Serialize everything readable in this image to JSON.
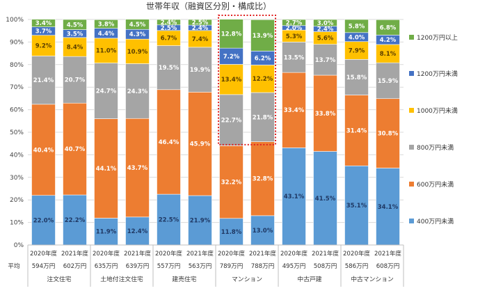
{
  "chart_data": {
    "type": "bar",
    "stacked": true,
    "title": "世帯年収（融資区分別・構成比）",
    "ylim": [
      0,
      100
    ],
    "yticks": [
      "0%",
      "10%",
      "20%",
      "30%",
      "40%",
      "50%",
      "60%",
      "70%",
      "80%",
      "90%",
      "100%"
    ],
    "categories": [
      "2020年度",
      "2021年度",
      "2020年度",
      "2021年度",
      "2020年度",
      "2021年度",
      "2020年度",
      "2021年度",
      "2020年度",
      "2021年度",
      "2020年度",
      "2021年度"
    ],
    "averages_label": "平均",
    "averages": [
      "594万円",
      "602万円",
      "635万円",
      "639万円",
      "557万円",
      "563万円",
      "789万円",
      "788万円",
      "495万円",
      "508万円",
      "586万円",
      "608万円"
    ],
    "groups": [
      "注文住宅",
      "土地付注文住宅",
      "建売住宅",
      "マンション",
      "中古戸建",
      "中古マンション"
    ],
    "highlight_group": "マンション",
    "legend_position": "right",
    "series": [
      {
        "name": "400万円未満",
        "color": "#5b9bd5",
        "values": [
          22.0,
          22.2,
          11.9,
          12.4,
          22.5,
          21.9,
          11.8,
          13.0,
          43.1,
          41.5,
          35.1,
          34.1
        ]
      },
      {
        "name": "600万円未満",
        "color": "#ed7d31",
        "values": [
          40.4,
          40.7,
          44.1,
          43.7,
          46.4,
          45.9,
          32.2,
          32.8,
          33.4,
          33.8,
          31.4,
          30.8
        ]
      },
      {
        "name": "800万円未満",
        "color": "#a5a5a5",
        "values": [
          21.4,
          20.7,
          24.7,
          24.3,
          19.5,
          19.9,
          22.7,
          21.8,
          13.5,
          13.7,
          15.8,
          15.9
        ]
      },
      {
        "name": "1000万円未満",
        "color": "#ffc000",
        "values": [
          9.2,
          8.4,
          11.0,
          10.9,
          6.7,
          7.4,
          13.4,
          12.2,
          5.3,
          5.6,
          7.9,
          8.1
        ]
      },
      {
        "name": "1200万円未満",
        "color": "#4472c4",
        "values": [
          3.7,
          3.5,
          4.4,
          4.3,
          2.5,
          2.4,
          7.2,
          6.2,
          2.0,
          2.4,
          4.0,
          4.2
        ]
      },
      {
        "name": "1200万円以上",
        "color": "#70ad47",
        "values": [
          3.4,
          4.5,
          3.8,
          4.5,
          2.4,
          2.5,
          12.8,
          13.9,
          2.7,
          3.0,
          5.8,
          6.8
        ]
      }
    ],
    "data_labels": [
      [
        "22.0%",
        "22.2%",
        "11.9%",
        "12.4%",
        "22.5%",
        "21.9%",
        "11.8%",
        "13.0%",
        "43.1%",
        "41.5%",
        "35.1%",
        "34.1%"
      ],
      [
        "40.4%",
        "40.7%",
        "44.1%",
        "43.7%",
        "46.4%",
        "45.9%",
        "32.2%",
        "32.8%",
        "33.4%",
        "33.8%",
        "31.4%",
        "30.8%"
      ],
      [
        "21.4%",
        "20.7%",
        "24.7%",
        "24.3%",
        "19.5%",
        "19.9%",
        "22.7%",
        "21.8%",
        "13.5%",
        "13.7%",
        "15.8%",
        "15.9%"
      ],
      [
        "9.2%",
        "8.4%",
        "11.0%",
        "10.9%",
        "6.7%",
        "7.4%",
        "13.4%",
        "12.2%",
        "5.3%",
        "5.6%",
        "7.9%",
        "8.1%"
      ],
      [
        "3.7%",
        "3.5%",
        "4.4%",
        "4.3%",
        "2.5%",
        "2.4%",
        "7.2%",
        "6.2%",
        "2.0%",
        "2.4%",
        "4.0%",
        "4.2%"
      ],
      [
        "3.4%",
        "4.5%",
        "3.8%",
        "4.5%",
        "2.4%",
        "2.5%",
        "12.8%",
        "13.9%",
        "2.7%",
        "3.0%",
        "5.8%",
        "6.8%"
      ]
    ],
    "label_colors": [
      "#1f3864",
      "#ffffff",
      "#ffffff",
      "#5a3e00",
      "#ffffff",
      "#ffffff"
    ]
  }
}
